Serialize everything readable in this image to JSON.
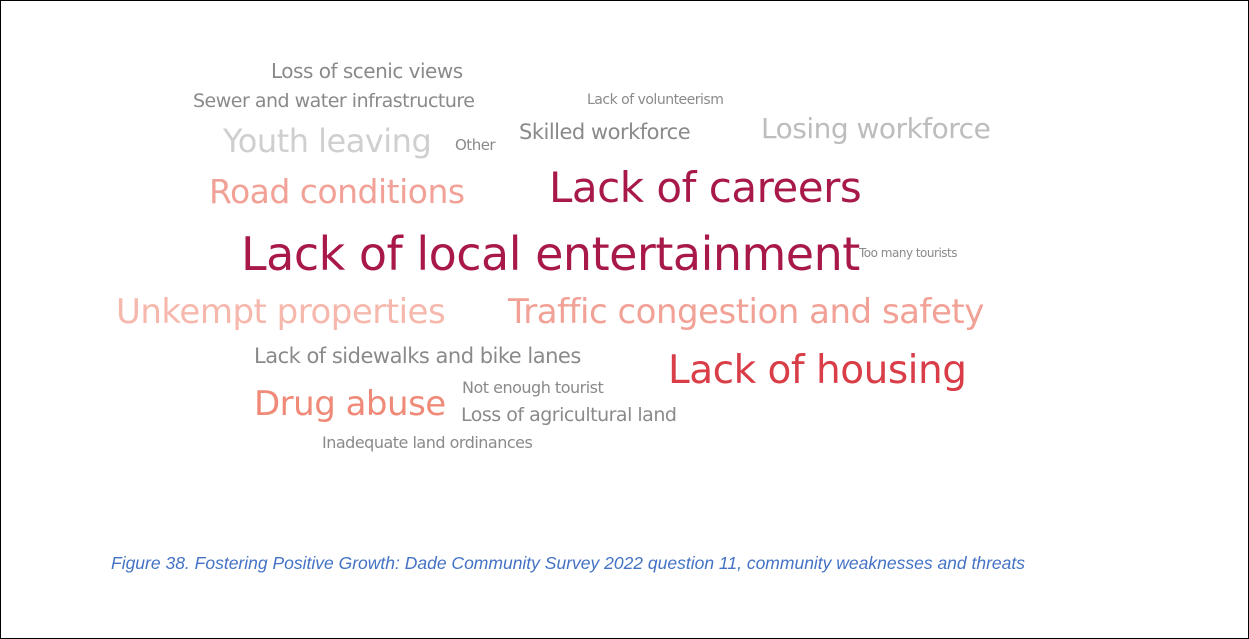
{
  "word_cloud": {
    "words": [
      {
        "id": "loss-of-scenic-views",
        "text": "Loss of scenic views",
        "color": "#8a8a8a"
      },
      {
        "id": "sewer-and-water-infrastructure",
        "text": "Sewer and water infrastructure",
        "color": "#8a8a8a"
      },
      {
        "id": "lack-of-volunteerism",
        "text": "Lack of volunteerism",
        "color": "#8a8a8a"
      },
      {
        "id": "youth-leaving",
        "text": "Youth leaving",
        "color": "#cfcfcf"
      },
      {
        "id": "other",
        "text": "Other",
        "color": "#8a8a8a"
      },
      {
        "id": "skilled-workforce",
        "text": "Skilled workforce",
        "color": "#8a8a8a"
      },
      {
        "id": "losing-workforce",
        "text": "Losing workforce",
        "color": "#bdbdbd"
      },
      {
        "id": "road-conditions",
        "text": "Road conditions",
        "color": "#f2a196"
      },
      {
        "id": "lack-of-careers",
        "text": "Lack of careers",
        "color": "#a8194a"
      },
      {
        "id": "lack-of-local-entertainment",
        "text": "Lack of local entertainment",
        "color": "#a8194a"
      },
      {
        "id": "too-many-tourists",
        "text": "Too many tourists",
        "color": "#8a8a8a"
      },
      {
        "id": "unkempt-properties",
        "text": "Unkempt properties",
        "color": "#f6b8ac"
      },
      {
        "id": "traffic-congestion-and-safety",
        "text": "Traffic congestion and safety",
        "color": "#f2a196"
      },
      {
        "id": "lack-of-sidewalks-and-bike-lanes",
        "text": "Lack of sidewalks and bike lanes",
        "color": "#8a8a8a"
      },
      {
        "id": "lack-of-housing",
        "text": "Lack of housing",
        "color": "#d93d48"
      },
      {
        "id": "not-enough-tourist",
        "text": "Not enough tourist",
        "color": "#8a8a8a"
      },
      {
        "id": "drug-abuse",
        "text": "Drug abuse",
        "color": "#ef8a78"
      },
      {
        "id": "loss-of-agricultural-land",
        "text": "Loss of agricultural land",
        "color": "#8a8a8a"
      },
      {
        "id": "inadequate-land-ordinances",
        "text": "Inadequate land ordinances",
        "color": "#8a8a8a"
      }
    ]
  },
  "caption": "Figure 38. Fostering Positive Growth: Dade Community Survey 2022 question 11, community weaknesses and threats"
}
